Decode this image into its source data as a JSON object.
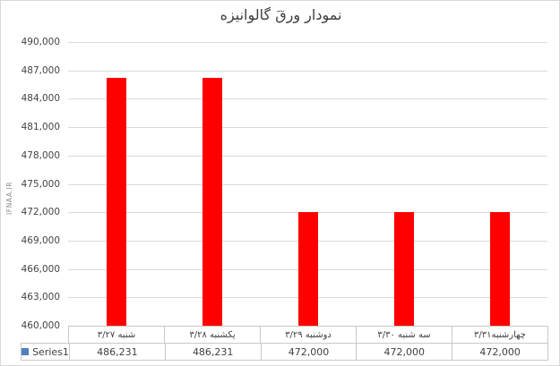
{
  "title": "نمودار ورقَ گالوانیزه",
  "watermark": "IFNAA.IR",
  "legend": {
    "label": "Series1"
  },
  "colors": {
    "bar": "#FF0000",
    "gridline": "#D9D9D9",
    "table_border": "#C8C8C8",
    "text": "#404040",
    "legend_marker": "#4F81BD",
    "watermark": "#8C8C8C"
  },
  "chart_data": {
    "type": "bar",
    "title": "نمودار ورقَ گالوانیزه",
    "categories": [
      "شنبه ۳/۲۷",
      "یکشنبه ۳/۲۸",
      "دوشنبه ۳/۲۹",
      "سه شنبه ۳/۳۰",
      "چهارشنبه۳/۳۱"
    ],
    "series": [
      {
        "name": "Series1",
        "color": "#FF0000",
        "values": [
          486231,
          486231,
          472000,
          472000,
          472000
        ]
      }
    ],
    "value_labels": [
      "486,231",
      "486,231",
      "472,000",
      "472,000",
      "472,000"
    ],
    "ylim": [
      460000,
      490000
    ],
    "ytick_step": 3000,
    "ytick_labels": [
      "490,000",
      "487,000",
      "484,000",
      "481,000",
      "478,000",
      "475,000",
      "472,000",
      "469,000",
      "466,000",
      "463,000",
      "460,000"
    ],
    "grid": true,
    "legend_position": "data-table-left"
  }
}
